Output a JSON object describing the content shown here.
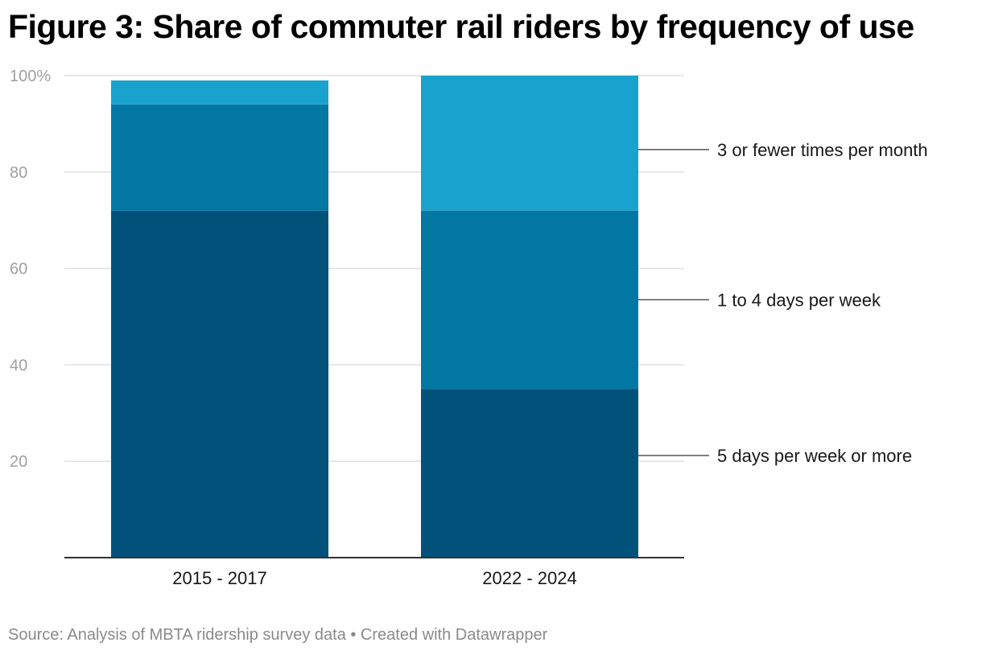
{
  "title": "Figure 3: Share of commuter rail riders by frequency of use",
  "source": "Source: Analysis of MBTA ridership survey data • Created with Datawrapper",
  "colors": {
    "five_days": "#00527a",
    "one_to_four": "#0277a3",
    "three_or_fewer": "#19a2ce",
    "grid": "#e0e0e0",
    "axis": "#333333",
    "leader": "#555555"
  },
  "chart_data": {
    "type": "bar",
    "stacked": true,
    "title": "Figure 3: Share of commuter rail riders by frequency of use",
    "xlabel": "",
    "ylabel": "",
    "ylim": [
      0,
      100
    ],
    "yticks": [
      20,
      40,
      60,
      80,
      100
    ],
    "ytick_labels": [
      "20",
      "40",
      "60",
      "80",
      "100%"
    ],
    "categories": [
      "2015 - 2017",
      "2022 - 2024"
    ],
    "series": [
      {
        "name": "5 days per week or more",
        "color": "#00527a",
        "values": [
          72,
          35
        ]
      },
      {
        "name": "1 to 4 days per week",
        "color": "#0277a3",
        "values": [
          22,
          37
        ]
      },
      {
        "name": "3 or fewer times per month",
        "color": "#19a2ce",
        "values": [
          5,
          28
        ]
      }
    ],
    "legend": "direct labels on the right"
  }
}
